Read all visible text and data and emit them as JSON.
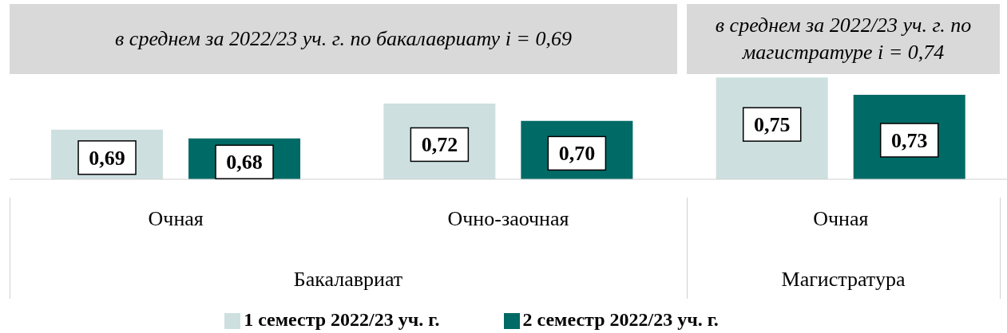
{
  "chart_data": {
    "type": "bar",
    "categories": [
      "Очная",
      "Очно-заочная",
      "Очная"
    ],
    "series": [
      {
        "name": "1 семестр 2022/23 уч. г.",
        "color": "#cde0df",
        "values": [
          0.69,
          0.72,
          0.75
        ],
        "value_labels": [
          "0,69",
          "0,72",
          "0,75"
        ]
      },
      {
        "name": "2 семестр 2022/23 уч. г.",
        "color": "#006a66",
        "values": [
          0.68,
          0.7,
          0.73
        ],
        "value_labels": [
          "0,68",
          "0,70",
          "0,73"
        ]
      }
    ],
    "ylim": [
      0.633,
      0.752
    ],
    "tick_labels": "x",
    "legend": "bottom",
    "grid": false,
    "annotations": [
      "в среднем за 2022/23 уч. г. по бакалавриату i = 0,69",
      "в среднем за 2022/23 уч. г. по магистратуре i = 0,74",
      "Бакалавриат",
      "Магистратура"
    ]
  }
}
